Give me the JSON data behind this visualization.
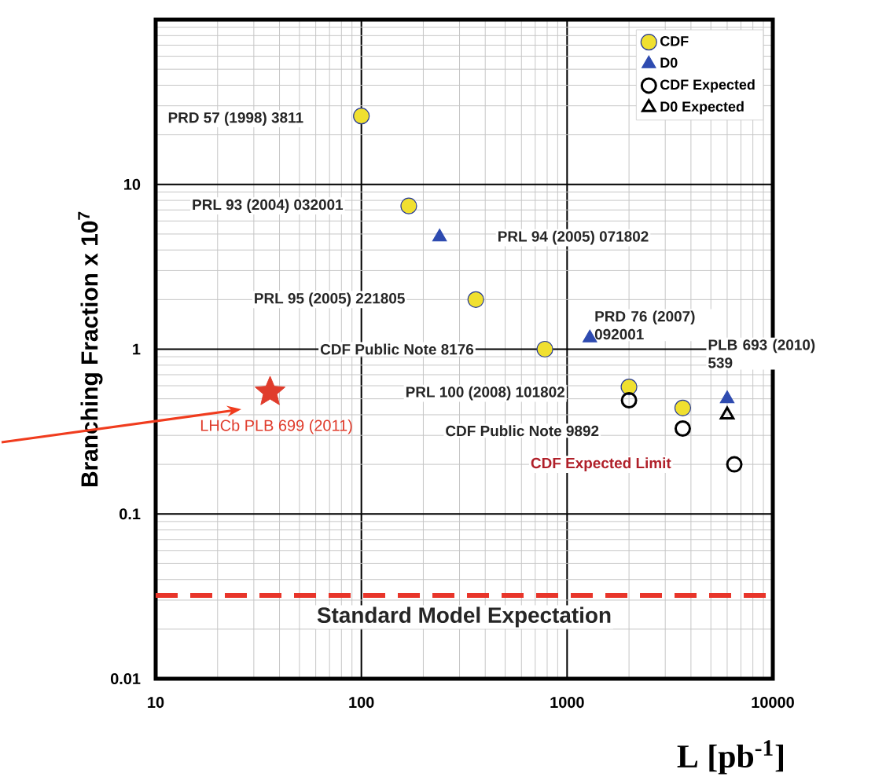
{
  "chart_data": {
    "type": "scatter",
    "log": "xy",
    "grid": true,
    "legend": "top right",
    "ylabel": "Branching Fraction x 10$^{7}$",
    "xlabel": "L [pb$^{-1}$]",
    "xlim": [
      10,
      10000
    ],
    "ylim": [
      0.01,
      100
    ],
    "xticks": [
      10,
      100,
      1000,
      10000
    ],
    "yticks": [
      0.01,
      0.1,
      1,
      10,
      {
        "value": 100,
        "label": null
      }
    ],
    "series": [
      {
        "name": "CDF",
        "color": "#f0e030",
        "marker": "circle",
        "x": [
          100,
          170,
          360,
          780,
          2000,
          3650
        ],
        "values": [
          26,
          7.4,
          2.0,
          1.0,
          0.59,
          0.44
        ]
      },
      {
        "name": "D0",
        "color": "#2e4bb0",
        "marker": "triangle",
        "x": [
          240,
          1290,
          6000
        ],
        "values": [
          4.8,
          1.17,
          0.5
        ]
      },
      {
        "name": "CDF Expected",
        "color": "#000000",
        "marker": "circle",
        "x": [
          2000,
          3650,
          6500
        ],
        "values": [
          0.49,
          0.33,
          0.2
        ]
      },
      {
        "name": "D0 Expected",
        "color": "#000000",
        "marker": "triangle",
        "x": [
          6000
        ],
        "values": [
          0.4
        ]
      },
      {
        "name": "LHCb PLB 699 (2011)",
        "color": "#e03c2c",
        "marker": "star",
        "x": [
          36
        ],
        "values": [
          0.55
        ]
      }
    ],
    "ref_lines": [
      {
        "axis": "y",
        "value": 0.032,
        "label": "Standard Model Expectation",
        "color": "#e8352a",
        "line_style": "dashed"
      }
    ],
    "annotations": [
      "PRD 57 (1998) 3811",
      "PRL 93 (2004) 032001",
      "PRL 94 (2005) 071802",
      "PRL 95 (2005) 221805",
      "CDF Public Note 8176",
      "PRD 76 (2007) 092001",
      "PLB 693 (2010) 539",
      "PRL 100 (2008) 101802",
      "CDF Public Note 9892",
      "CDF Expected Limit"
    ]
  }
}
